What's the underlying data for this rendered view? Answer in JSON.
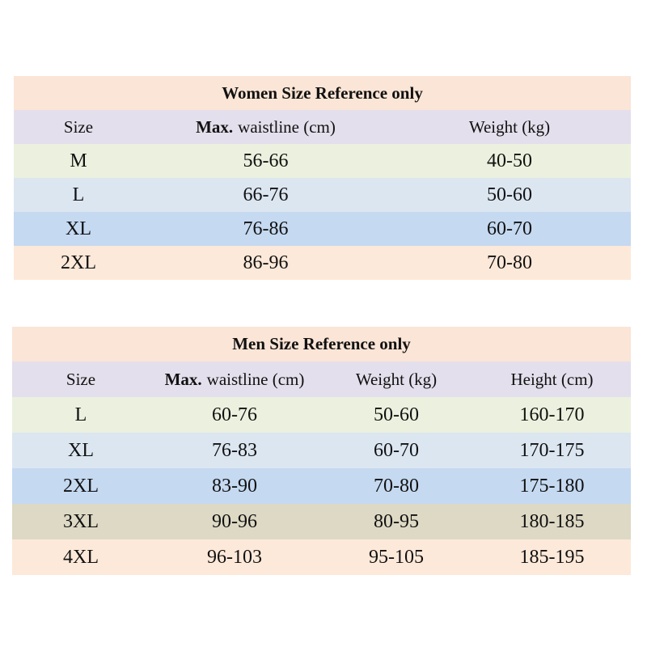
{
  "women": {
    "title": "Women Size Reference only",
    "columns": [
      {
        "text": "Size"
      },
      {
        "bold": "Max.",
        "text": "waistline (cm)"
      },
      {
        "text": "Weight (kg)"
      }
    ],
    "rows": [
      [
        "M",
        "56-66",
        "40-50"
      ],
      [
        "L",
        "66-76",
        "50-60"
      ],
      [
        "XL",
        "76-86",
        "60-70"
      ],
      [
        "2XL",
        "86-96",
        "70-80"
      ]
    ]
  },
  "men": {
    "title": "Men Size Reference only",
    "columns": [
      {
        "text": "Size"
      },
      {
        "bold": "Max.",
        "text": "waistline (cm)"
      },
      {
        "text": "Weight (kg)"
      },
      {
        "text": "Height (cm)"
      }
    ],
    "rows": [
      [
        "L",
        "60-76",
        "50-60",
        "160-170"
      ],
      [
        "XL",
        "76-83",
        "60-70",
        "170-175"
      ],
      [
        "2XL",
        "83-90",
        "70-80",
        "175-180"
      ],
      [
        "3XL",
        "90-96",
        "80-95",
        "180-185"
      ],
      [
        "4XL",
        "96-103",
        "95-105",
        "185-195"
      ]
    ]
  }
}
